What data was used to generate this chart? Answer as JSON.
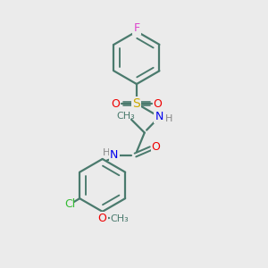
{
  "background_color": "#ebebeb",
  "bond_color": "#4a7a6d",
  "atom_colors": {
    "F": "#dd44cc",
    "O": "#ee0000",
    "S": "#ccaa00",
    "N": "#0000ee",
    "Cl": "#33bb33",
    "C": "#4a7a6d",
    "H": "#888888"
  },
  "figsize": [
    3.0,
    3.0
  ],
  "dpi": 100
}
